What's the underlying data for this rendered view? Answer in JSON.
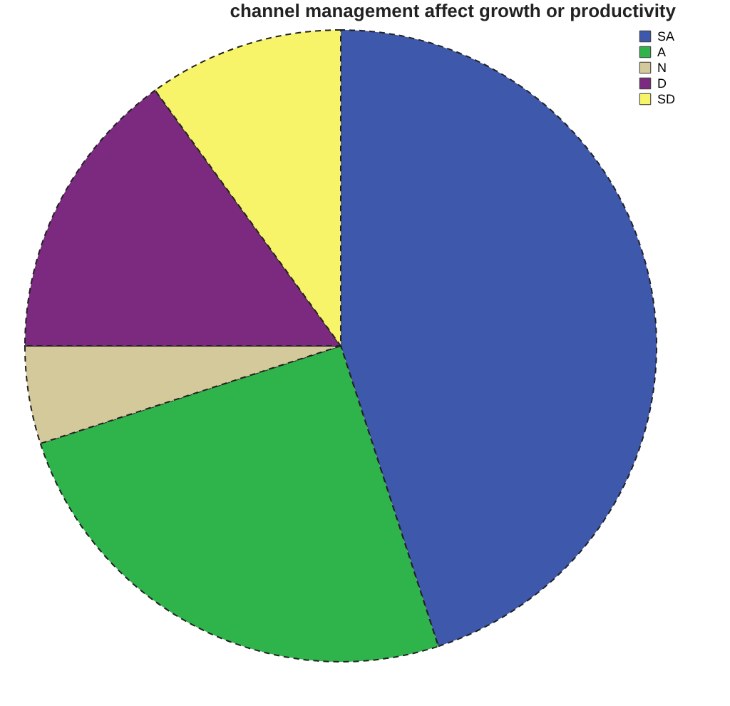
{
  "chart_data": {
    "type": "pie",
    "title": "channel management affect growth or productivity",
    "categories": [
      "SA",
      "A",
      "N",
      "D",
      "SD"
    ],
    "values": [
      45,
      25,
      5,
      15,
      10
    ],
    "colors": [
      "#3e58ac",
      "#2fb34b",
      "#d4c99a",
      "#7b2a7f",
      "#f7f46a"
    ],
    "legend": "top right"
  }
}
